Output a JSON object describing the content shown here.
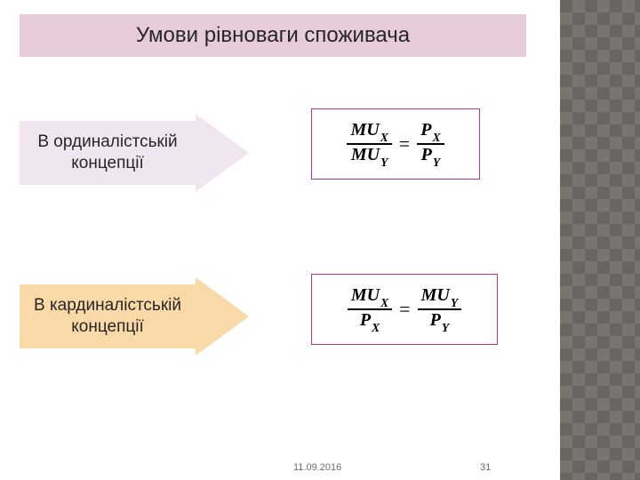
{
  "title": "Умови рівноваги споживача",
  "blocks": [
    {
      "label_line1": "В ординалістській",
      "label_line2": "концепції",
      "arrow_color": "#f1e6ef",
      "formula": {
        "border_color": "#b33a8a",
        "left": {
          "num_base": "MU",
          "num_sub": "X",
          "den_base": "MU",
          "den_sub": "Y"
        },
        "right": {
          "num_base": "P",
          "num_sub": "X",
          "den_base": "P",
          "den_sub": "Y"
        }
      }
    },
    {
      "label_line1": "В кардиналістській",
      "label_line2": "концепції",
      "arrow_color": "#f9d9a8",
      "formula": {
        "border_color": "#b33a8a",
        "left": {
          "num_base": "MU",
          "num_sub": "X",
          "den_base": "P",
          "den_sub": "X"
        },
        "right": {
          "num_base": "MU",
          "num_sub": "Y",
          "den_base": "P",
          "den_sub": "Y"
        }
      }
    }
  ],
  "footer": {
    "date": "11.09.2016",
    "page": "31"
  },
  "decor": {
    "checker_bg": "#6b6561",
    "checker_fg": "#7a746f"
  }
}
